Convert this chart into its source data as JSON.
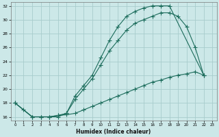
{
  "xlabel": "Humidex (Indice chaleur)",
  "bg_color": "#cce8e8",
  "grid_color": "#a8cccc",
  "line_color": "#1a6b5a",
  "xlim": [
    -0.5,
    23.5
  ],
  "ylim": [
    15.5,
    32.5
  ],
  "xticks": [
    0,
    1,
    2,
    3,
    4,
    5,
    6,
    7,
    8,
    9,
    10,
    11,
    12,
    13,
    14,
    15,
    16,
    17,
    18,
    19,
    20,
    21,
    22,
    23
  ],
  "yticks": [
    16,
    18,
    20,
    22,
    24,
    26,
    28,
    30,
    32
  ],
  "line1_x": [
    0,
    1,
    2,
    3,
    4,
    5,
    6,
    7,
    8,
    9,
    10,
    11,
    12,
    13,
    14,
    15,
    16,
    17,
    18,
    22
  ],
  "line1_y": [
    18,
    17,
    16,
    16,
    16,
    16,
    16.5,
    19,
    20.5,
    22,
    24.5,
    27,
    29,
    30.5,
    31.2,
    31.7,
    32,
    32,
    32,
    22
  ],
  "line2_x": [
    0,
    2,
    3,
    4,
    5,
    6,
    7,
    8,
    9,
    10,
    11,
    12,
    13,
    14,
    15,
    16,
    17,
    18,
    19,
    20,
    21,
    22
  ],
  "line2_y": [
    18,
    16,
    16,
    16,
    16.2,
    16.5,
    18.5,
    20,
    21.5,
    23.5,
    25.5,
    27,
    28.5,
    29.5,
    30,
    30.5,
    31,
    31,
    30.5,
    29,
    26,
    22
  ],
  "line3_x": [
    0,
    2,
    3,
    4,
    5,
    6,
    7,
    8,
    9,
    10,
    11,
    12,
    13,
    14,
    15,
    16,
    17,
    18,
    19,
    20,
    21,
    22
  ],
  "line3_y": [
    18,
    16,
    16,
    16,
    16.2,
    16.3,
    16.5,
    17,
    17.5,
    18,
    18.5,
    19,
    19.5,
    20,
    20.5,
    21,
    21.3,
    21.7,
    22,
    22.2,
    22.5,
    22
  ]
}
